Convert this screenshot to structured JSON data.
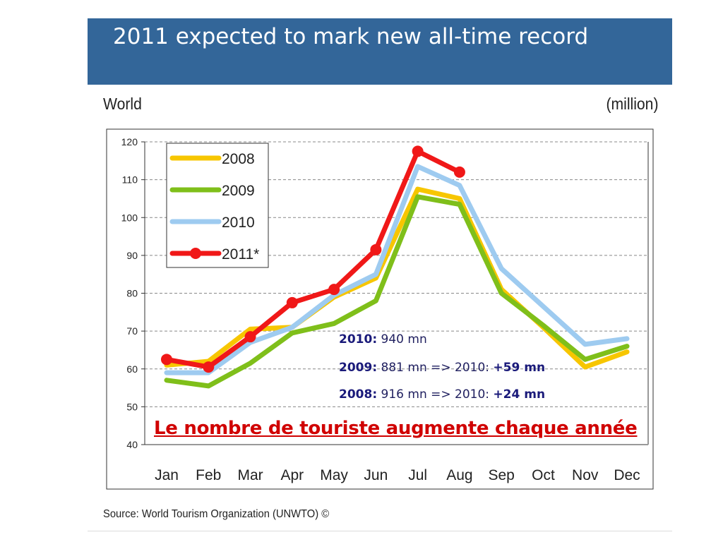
{
  "header": {
    "title": "2011 expected to mark new all-time record"
  },
  "panel": {
    "region": "World",
    "unit": "(million)",
    "source": "Source: World Tourism Organization (UNWTO) ©"
  },
  "annotations": [
    {
      "year": "2010:",
      "text": " 940 mn",
      "delta": ""
    },
    {
      "year": "2009:",
      "text": " 881 mn => 2010: ",
      "delta": "+59 mn"
    },
    {
      "year": "2008:",
      "text": " 916 mn => 2010: ",
      "delta": "+24 mn"
    }
  ],
  "headline": "Le nombre de touriste augmente chaque année",
  "chart_data": {
    "type": "line",
    "categories": [
      "Jan",
      "Feb",
      "Mar",
      "Apr",
      "May",
      "Jun",
      "Jul",
      "Aug",
      "Sep",
      "Oct",
      "Nov",
      "Dec"
    ],
    "ylim": [
      40,
      120
    ],
    "yticks": [
      40,
      50,
      60,
      70,
      80,
      90,
      100,
      110,
      120
    ],
    "grid": true,
    "legend_position": "top-left",
    "series": [
      {
        "name": "2008",
        "color": "#f7c600",
        "markers": false,
        "values": [
          61,
          62,
          70.5,
          71,
          79,
          84,
          107.5,
          105,
          81,
          71,
          60.5,
          64.5
        ]
      },
      {
        "name": "2009",
        "color": "#7fbf1a",
        "markers": false,
        "values": [
          57,
          55.5,
          61.5,
          69.5,
          72,
          78,
          105.5,
          103.5,
          80,
          71.5,
          62.5,
          66
        ]
      },
      {
        "name": "2010",
        "color": "#9ecbf0",
        "markers": false,
        "values": [
          59,
          59,
          67,
          71,
          79.5,
          85,
          113.5,
          108.5,
          86.5,
          76.5,
          66.5,
          68
        ]
      },
      {
        "name": "2011*",
        "color": "#f01818",
        "markers": true,
        "values": [
          62.5,
          60.5,
          68.5,
          77.5,
          81,
          91.5,
          117.5,
          112,
          null,
          null,
          null,
          null
        ]
      }
    ]
  }
}
